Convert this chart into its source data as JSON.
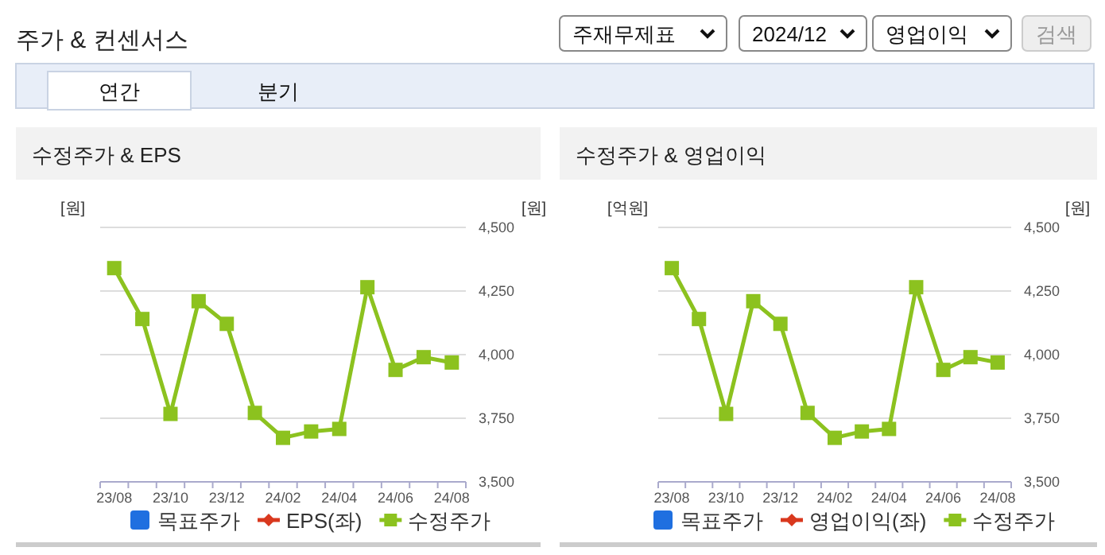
{
  "chart_data": [
    {
      "type": "other",
      "title": "주가 & 컨센서스",
      "annotations": [
        "주재무제표",
        "2024/12",
        "영업이익",
        "검색",
        "연간",
        "분기"
      ]
    },
    {
      "type": "line",
      "title": "수정주가 & EPS",
      "ylabel": "[원]",
      "y2label": "[원]",
      "categories": [
        "23/08",
        null,
        "23/10",
        null,
        "23/12",
        null,
        "24/02",
        null,
        "24/04",
        null,
        "24/06",
        null,
        "24/08"
      ],
      "series": [
        {
          "name": "목표주가",
          "type": "bar",
          "color": "#1f6fe0",
          "marker": "square",
          "values": [
            null,
            null,
            null,
            null,
            null,
            null,
            null,
            null,
            null,
            null,
            null,
            null,
            null
          ]
        },
        {
          "name": "EPS(좌)",
          "type": "line",
          "color": "#d9381e",
          "marker": "diamond",
          "values": [
            null,
            null,
            null,
            null,
            null,
            null,
            null,
            null,
            null,
            null,
            null,
            null,
            null
          ]
        },
        {
          "name": "수정주가",
          "type": "line",
          "axis": "y2",
          "color": "#8cc21f",
          "marker": "square",
          "values": [
            4340,
            4140,
            3767,
            4210,
            4121,
            3771,
            3673,
            3698,
            3708,
            4265,
            3940,
            3990,
            3969
          ]
        }
      ],
      "y2lim": [
        3500,
        4500
      ],
      "y2ticks": [
        {
          "value": 3500,
          "label": "3,500"
        },
        {
          "value": 3750,
          "label": "3,750"
        },
        {
          "value": 4000,
          "label": "4,000"
        },
        {
          "value": 4250,
          "label": "4,250"
        },
        {
          "value": 4500,
          "label": "4,500"
        }
      ],
      "grid": "y",
      "legend": "bottom"
    },
    {
      "type": "line",
      "title": "수정주가 & 영업이익",
      "ylabel": "[억원]",
      "y2label": "[원]",
      "categories": [
        "23/08",
        null,
        "23/10",
        null,
        "23/12",
        null,
        "24/02",
        null,
        "24/04",
        null,
        "24/06",
        null,
        "24/08"
      ],
      "series": [
        {
          "name": "목표주가",
          "type": "bar",
          "color": "#1f6fe0",
          "marker": "square",
          "values": [
            null,
            null,
            null,
            null,
            null,
            null,
            null,
            null,
            null,
            null,
            null,
            null,
            null
          ]
        },
        {
          "name": "영업이익(좌)",
          "type": "line",
          "color": "#d9381e",
          "marker": "diamond",
          "values": [
            null,
            null,
            null,
            null,
            null,
            null,
            null,
            null,
            null,
            null,
            null,
            null,
            null
          ]
        },
        {
          "name": "수정주가",
          "type": "line",
          "axis": "y2",
          "color": "#8cc21f",
          "marker": "square",
          "values": [
            4340,
            4140,
            3767,
            4210,
            4121,
            3771,
            3673,
            3698,
            3708,
            4265,
            3940,
            3990,
            3969
          ]
        }
      ],
      "y2lim": [
        3500,
        4500
      ],
      "y2ticks": [
        {
          "value": 3500,
          "label": "3,500"
        },
        {
          "value": 3750,
          "label": "3,750"
        },
        {
          "value": 4000,
          "label": "4,000"
        },
        {
          "value": 4250,
          "label": "4,250"
        },
        {
          "value": 4500,
          "label": "4,500"
        }
      ],
      "grid": "y",
      "legend": "bottom"
    }
  ]
}
